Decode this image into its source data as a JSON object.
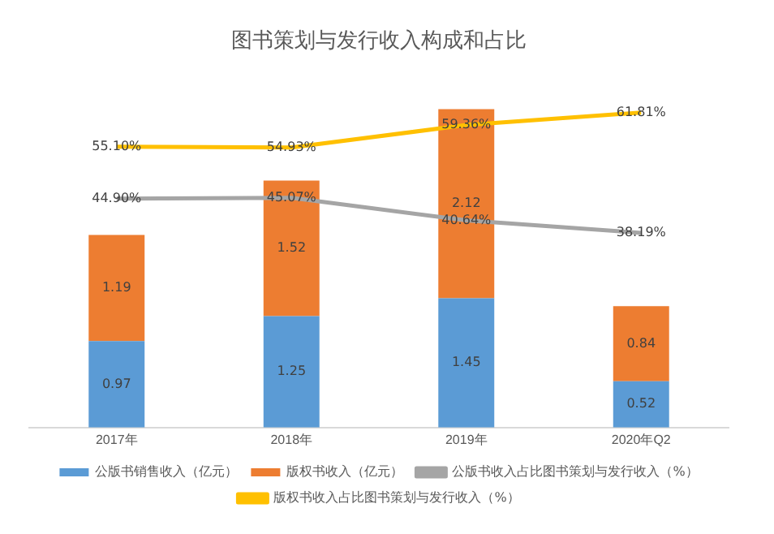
{
  "chart_data": {
    "type": "bar",
    "title": "图书策划与发行收入构成和占比",
    "categories": [
      "2017年",
      "2018年",
      "2019年",
      "2020年Q2"
    ],
    "stacked": true,
    "data_labels": true,
    "legend": "bottom",
    "grid": false,
    "marker": "none",
    "line_style": "solid",
    "series": [
      {
        "name": "公版书销售收入（亿元）",
        "color": "#5b9bd5",
        "values": [
          0.97,
          1.25,
          1.45,
          0.52
        ]
      },
      {
        "name": "版权书收入（亿元）",
        "color": "#ed7d31",
        "values": [
          1.19,
          1.52,
          2.12,
          0.84
        ]
      },
      {
        "name": "公版书收入占比图书策划与发行收入（%）",
        "type": "line",
        "axis": "y2",
        "color": "#a5a5a5",
        "values": [
          44.9,
          45.07,
          40.64,
          38.19
        ],
        "value_labels": [
          "44.90%",
          "45.07%",
          "40.64%",
          "38.19%"
        ]
      },
      {
        "name": "版权书收入占比图书策划与发行收入（%）",
        "type": "line",
        "axis": "y2",
        "color": "#ffc000",
        "values": [
          55.1,
          54.93,
          59.36,
          61.81
        ],
        "value_labels": [
          "55.10%",
          "54.93%",
          "59.36%",
          "61.81%"
        ]
      }
    ]
  }
}
